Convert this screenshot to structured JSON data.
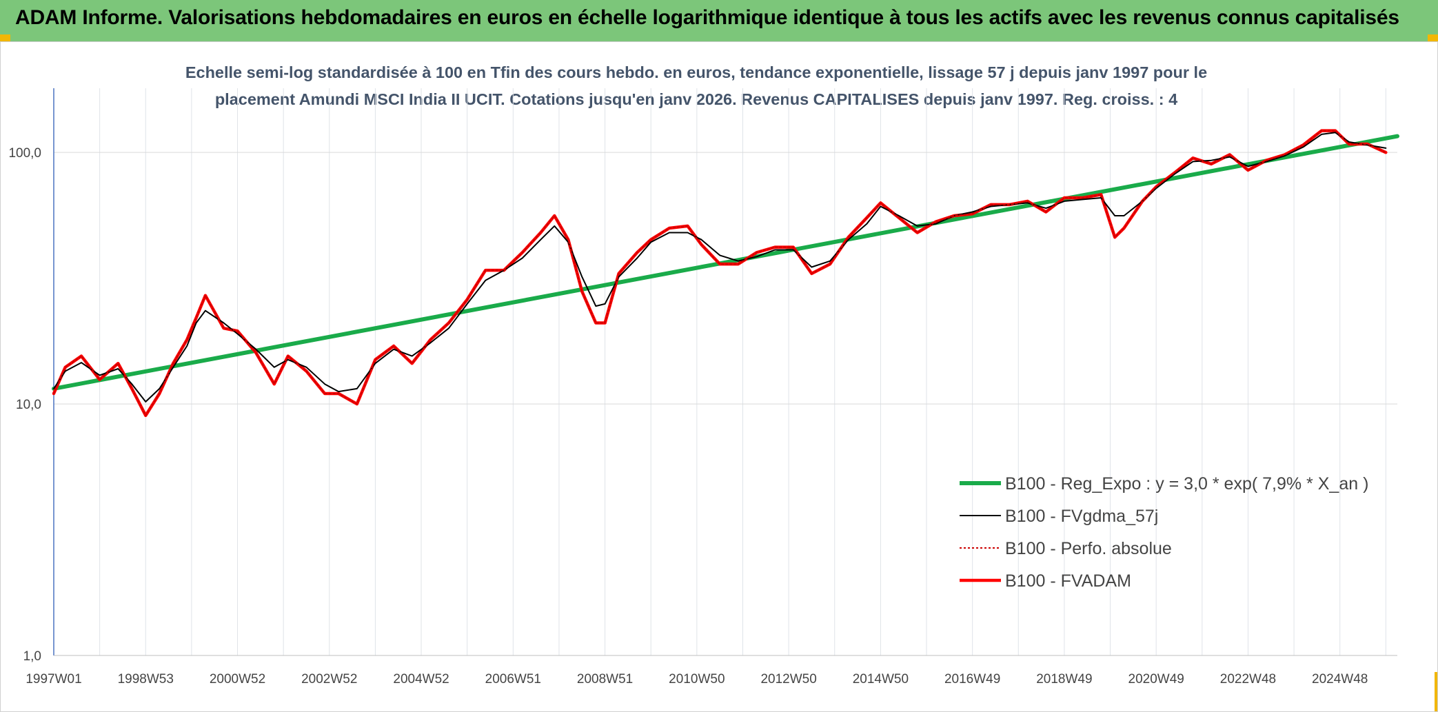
{
  "header": {
    "title": "ADAM Informe. Valorisations hebdomadaires en euros en échelle logarithmique identique à tous les actifs avec les revenus connus capitalisés",
    "background": "#7cc67a",
    "corner_accent": "#f2b705"
  },
  "chart_data": {
    "type": "line",
    "subtitle": "Echelle semi-log standardisée à 100 en Tfin des cours hebdo. en euros, tendance exponentielle, lissage 57 j depuis janv 1997 pour le placement Amundi MSCI India II UCIT. Cotations jusqu'en janv 2026. Revenus CAPITALISES depuis janv 1997. Reg. croiss. : 4",
    "y_scale": "log",
    "ylim": [
      1,
      180
    ],
    "y_ticks": [
      {
        "value": 1,
        "label": "1,0"
      },
      {
        "value": 10,
        "label": "10,0"
      },
      {
        "value": 100,
        "label": "100,0"
      }
    ],
    "xlim": [
      1997.0,
      2026.25
    ],
    "x_ticks": [
      {
        "x": 1997.0,
        "label": "1997W01"
      },
      {
        "x": 1999.0,
        "label": "1998W53"
      },
      {
        "x": 2001.0,
        "label": "2000W52"
      },
      {
        "x": 2003.0,
        "label": "2002W52"
      },
      {
        "x": 2005.0,
        "label": "2004W52"
      },
      {
        "x": 2007.0,
        "label": "2006W51"
      },
      {
        "x": 2009.0,
        "label": "2008W51"
      },
      {
        "x": 2011.0,
        "label": "2010W50"
      },
      {
        "x": 2013.0,
        "label": "2012W50"
      },
      {
        "x": 2015.0,
        "label": "2014W50"
      },
      {
        "x": 2017.0,
        "label": "2016W49"
      },
      {
        "x": 2019.0,
        "label": "2018W49"
      },
      {
        "x": 2021.0,
        "label": "2020W49"
      },
      {
        "x": 2023.0,
        "label": "2022W48"
      },
      {
        "x": 2025.0,
        "label": "2024W48"
      }
    ],
    "grid": "vertical and horizontal gridlines",
    "legend_position": "bottom-right",
    "series": [
      {
        "name": "B100 - Reg_Expo : y = 3,0 * exp( 7,9% *  X_an )",
        "color": "#1aab4a",
        "style": "solid-thick",
        "x": [
          1997.0,
          2026.25
        ],
        "y": [
          11.5,
          116
        ]
      },
      {
        "name": "B100 - FVgdma_57j",
        "color": "#000000",
        "style": "solid-thin",
        "x": [
          1997.0,
          1997.25,
          1997.6,
          1998.0,
          1998.4,
          1998.7,
          1999.0,
          1999.3,
          1999.6,
          1999.9,
          2000.1,
          2000.3,
          2000.7,
          2001.0,
          2001.4,
          2001.8,
          2002.1,
          2002.5,
          2002.9,
          2003.2,
          2003.6,
          2004.0,
          2004.4,
          2004.8,
          2005.2,
          2005.6,
          2006.0,
          2006.4,
          2006.8,
          2007.2,
          2007.6,
          2007.9,
          2008.2,
          2008.5,
          2008.8,
          2009.0,
          2009.3,
          2009.7,
          2010.0,
          2010.4,
          2010.8,
          2011.1,
          2011.5,
          2011.9,
          2012.3,
          2012.7,
          2013.1,
          2013.5,
          2013.9,
          2014.3,
          2014.7,
          2015.0,
          2015.4,
          2015.8,
          2016.2,
          2016.6,
          2017.0,
          2017.4,
          2017.8,
          2018.2,
          2018.6,
          2019.0,
          2019.4,
          2019.8,
          2020.1,
          2020.3,
          2020.7,
          2021.0,
          2021.4,
          2021.8,
          2022.2,
          2022.6,
          2023.0,
          2023.4,
          2023.8,
          2024.2,
          2024.6,
          2024.9,
          2025.2,
          2025.6,
          2026.0
        ],
        "y": [
          11.5,
          13.5,
          14.6,
          13.0,
          13.8,
          12.0,
          10.2,
          11.5,
          14.0,
          17.0,
          21.0,
          23.5,
          21.0,
          19.0,
          16.5,
          14.0,
          15.0,
          14.0,
          12.0,
          11.2,
          11.5,
          14.5,
          16.5,
          15.5,
          17.5,
          20.0,
          25.0,
          31.0,
          34.0,
          38.0,
          45.0,
          51.0,
          44.0,
          32.0,
          24.5,
          25.0,
          32.0,
          38.0,
          44.0,
          48.0,
          48.0,
          45.0,
          39.0,
          37.0,
          38.5,
          41.0,
          41.0,
          35.0,
          37.0,
          45.0,
          52.0,
          61.0,
          56.0,
          51.0,
          52.0,
          56.0,
          58.0,
          61.0,
          62.0,
          63.0,
          60.0,
          64.0,
          65.0,
          66.0,
          56.0,
          56.0,
          64.0,
          72.0,
          82.0,
          92.0,
          93.0,
          96.0,
          88.0,
          92.0,
          97.0,
          105.0,
          118.0,
          120.0,
          110.0,
          107.0,
          104.0
        ]
      },
      {
        "name": "B100 - Perfo. absolue",
        "color": "#cc0000",
        "style": "dotted",
        "x": [
          1997.0,
          1997.25,
          1997.6,
          1998.0,
          1998.4,
          1998.7,
          1999.0,
          1999.3,
          1999.6,
          1999.9,
          2000.1,
          2000.3,
          2000.7,
          2001.0,
          2001.4,
          2001.8,
          2002.1,
          2002.5,
          2002.9,
          2003.2,
          2003.6,
          2004.0,
          2004.4,
          2004.8,
          2005.2,
          2005.6,
          2006.0,
          2006.4,
          2006.8,
          2007.2,
          2007.6,
          2007.9,
          2008.2,
          2008.5,
          2008.8,
          2009.0,
          2009.3,
          2009.7,
          2010.0,
          2010.4,
          2010.8,
          2011.1,
          2011.5,
          2011.9,
          2012.3,
          2012.7,
          2013.1,
          2013.5,
          2013.9,
          2014.3,
          2014.7,
          2015.0,
          2015.4,
          2015.8,
          2016.2,
          2016.6,
          2017.0,
          2017.4,
          2017.8,
          2018.2,
          2018.6,
          2019.0,
          2019.4,
          2019.8,
          2020.1,
          2020.3,
          2020.7,
          2021.0,
          2021.4,
          2021.8,
          2022.2,
          2022.6,
          2023.0,
          2023.4,
          2023.8,
          2024.2,
          2024.6,
          2024.9,
          2025.2,
          2025.6,
          2026.0
        ],
        "y": [
          11.0,
          14.0,
          15.5,
          12.5,
          14.5,
          11.5,
          9.0,
          11.0,
          14.5,
          18.0,
          22.0,
          27.0,
          20.0,
          19.5,
          16.0,
          12.0,
          15.5,
          13.5,
          11.0,
          11.0,
          10.0,
          15.0,
          17.0,
          14.5,
          18.0,
          21.0,
          26.0,
          34.0,
          34.0,
          40.0,
          48.0,
          56.0,
          45.0,
          28.0,
          21.0,
          21.0,
          33.0,
          40.0,
          45.0,
          50.0,
          51.0,
          43.0,
          36.0,
          36.0,
          40.0,
          42.0,
          42.0,
          33.0,
          36.0,
          46.0,
          55.0,
          63.0,
          55.0,
          48.0,
          53.0,
          56.0,
          57.0,
          62.0,
          62.0,
          64.0,
          58.0,
          66.0,
          66.0,
          68.0,
          46.0,
          50.0,
          64.0,
          73.0,
          83.0,
          95.0,
          90.0,
          98.0,
          85.0,
          93.0,
          98.0,
          107.0,
          122.0,
          122.0,
          108.0,
          108.0,
          100.0
        ]
      },
      {
        "name": "B100 - FVADAM",
        "color": "#ff0000",
        "style": "solid-thick",
        "x": [
          1997.0,
          1997.25,
          1997.6,
          1998.0,
          1998.4,
          1998.7,
          1999.0,
          1999.3,
          1999.6,
          1999.9,
          2000.1,
          2000.3,
          2000.7,
          2001.0,
          2001.4,
          2001.8,
          2002.1,
          2002.5,
          2002.9,
          2003.2,
          2003.6,
          2004.0,
          2004.4,
          2004.8,
          2005.2,
          2005.6,
          2006.0,
          2006.4,
          2006.8,
          2007.2,
          2007.6,
          2007.9,
          2008.2,
          2008.5,
          2008.8,
          2009.0,
          2009.3,
          2009.7,
          2010.0,
          2010.4,
          2010.8,
          2011.1,
          2011.5,
          2011.9,
          2012.3,
          2012.7,
          2013.1,
          2013.5,
          2013.9,
          2014.3,
          2014.7,
          2015.0,
          2015.4,
          2015.8,
          2016.2,
          2016.6,
          2017.0,
          2017.4,
          2017.8,
          2018.2,
          2018.6,
          2019.0,
          2019.4,
          2019.8,
          2020.1,
          2020.3,
          2020.7,
          2021.0,
          2021.4,
          2021.8,
          2022.2,
          2022.6,
          2023.0,
          2023.4,
          2023.8,
          2024.2,
          2024.6,
          2024.9,
          2025.2,
          2025.6,
          2026.0
        ],
        "y": [
          11.0,
          14.0,
          15.5,
          12.5,
          14.5,
          11.5,
          9.0,
          11.0,
          14.5,
          18.0,
          22.0,
          27.0,
          20.0,
          19.5,
          16.0,
          12.0,
          15.5,
          13.5,
          11.0,
          11.0,
          10.0,
          15.0,
          17.0,
          14.5,
          18.0,
          21.0,
          26.0,
          34.0,
          34.0,
          40.0,
          48.0,
          56.0,
          45.0,
          28.0,
          21.0,
          21.0,
          33.0,
          40.0,
          45.0,
          50.0,
          51.0,
          43.0,
          36.0,
          36.0,
          40.0,
          42.0,
          42.0,
          33.0,
          36.0,
          46.0,
          55.0,
          63.0,
          55.0,
          48.0,
          53.0,
          56.0,
          57.0,
          62.0,
          62.0,
          64.0,
          58.0,
          66.0,
          66.0,
          68.0,
          46.0,
          50.0,
          64.0,
          73.0,
          83.0,
          95.0,
          90.0,
          98.0,
          85.0,
          93.0,
          98.0,
          107.0,
          122.0,
          122.0,
          108.0,
          108.0,
          100.0
        ]
      }
    ]
  }
}
